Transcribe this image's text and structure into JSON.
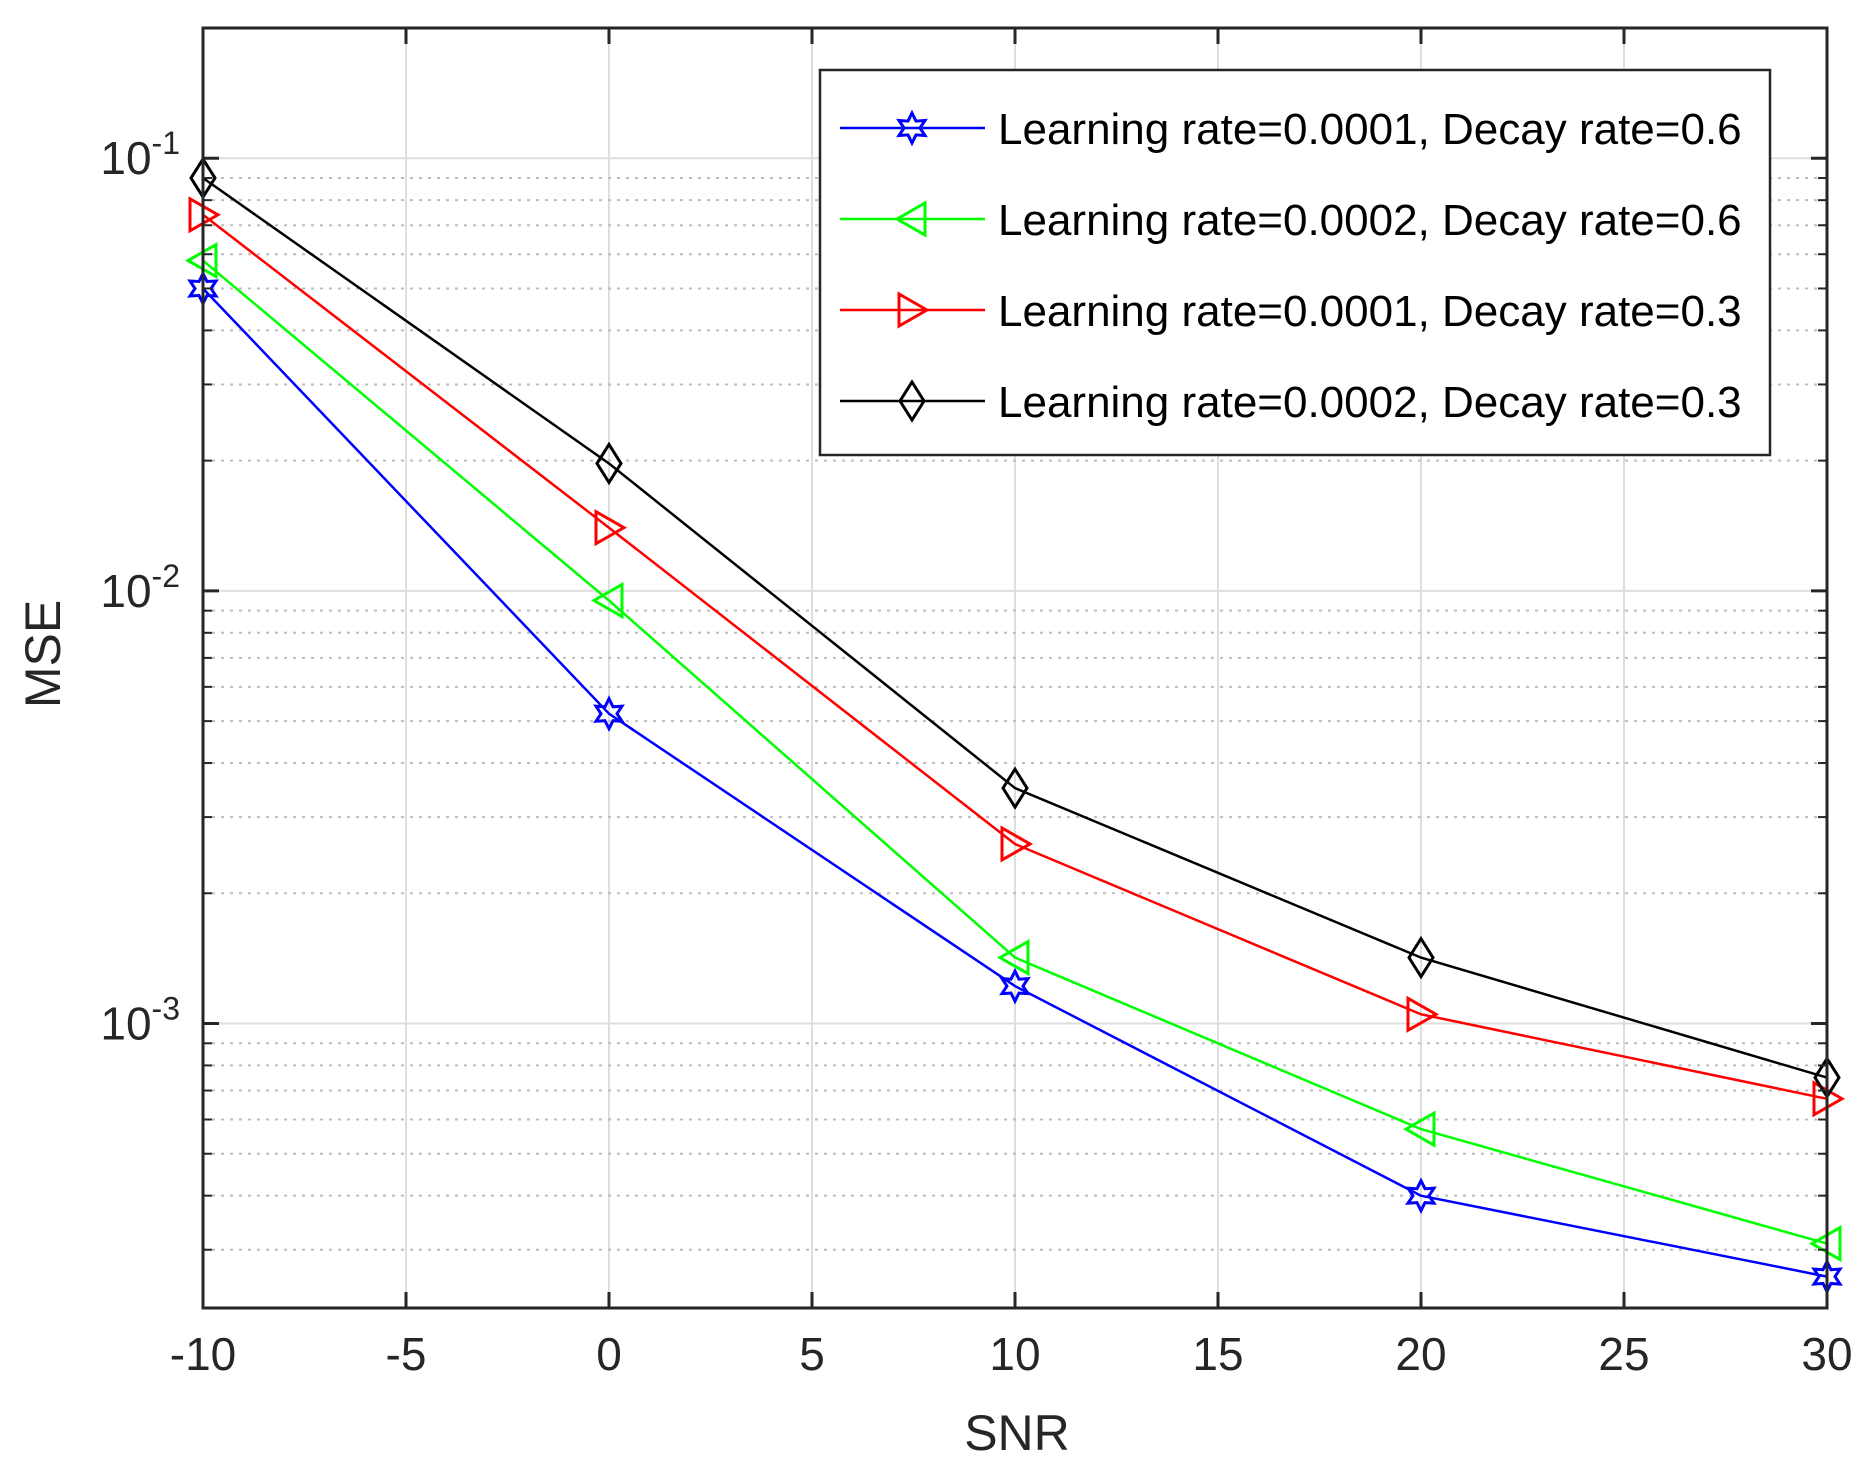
{
  "chart_data": {
    "type": "line",
    "title": "",
    "xlabel": "SNR",
    "ylabel": "MSE",
    "yscale": "log",
    "xlim": [
      -10,
      30
    ],
    "ylim": [
      0.00022,
      0.2
    ],
    "grid": true,
    "legend_position": "top-right",
    "x": [
      -10,
      0,
      10,
      20,
      30
    ],
    "xticks": [
      -10,
      -5,
      0,
      5,
      10,
      15,
      20,
      25,
      30
    ],
    "xtick_labels": [
      "-10",
      "-5",
      "0",
      "5",
      "10",
      "15",
      "20",
      "25",
      "30"
    ],
    "ytick_labels": [
      {
        "base": "10",
        "exp": "-1",
        "value": 0.1
      },
      {
        "base": "10",
        "exp": "-2",
        "value": 0.01
      },
      {
        "base": "10",
        "exp": "-3",
        "value": 0.001
      }
    ],
    "series": [
      {
        "name": "Learning rate=0.0001, Decay rate=0.6",
        "color": "#0000ff",
        "marker": "hexagram",
        "values": [
          0.05,
          0.0052,
          0.00122,
          0.0004,
          0.00026
        ]
      },
      {
        "name": "Learning rate=0.0002, Decay rate=0.6",
        "color": "#00ff00",
        "marker": "triangle-left",
        "values": [
          0.058,
          0.0095,
          0.00142,
          0.00057,
          0.00031
        ]
      },
      {
        "name": "Learning rate=0.0001, Decay rate=0.3",
        "color": "#ff0000",
        "marker": "triangle-right",
        "values": [
          0.074,
          0.014,
          0.0026,
          0.00105,
          0.00067
        ]
      },
      {
        "name": "Learning rate=0.0002, Decay rate=0.3",
        "color": "#000000",
        "marker": "diamond",
        "values": [
          0.09,
          0.0197,
          0.0035,
          0.00142,
          0.00075
        ]
      }
    ]
  }
}
